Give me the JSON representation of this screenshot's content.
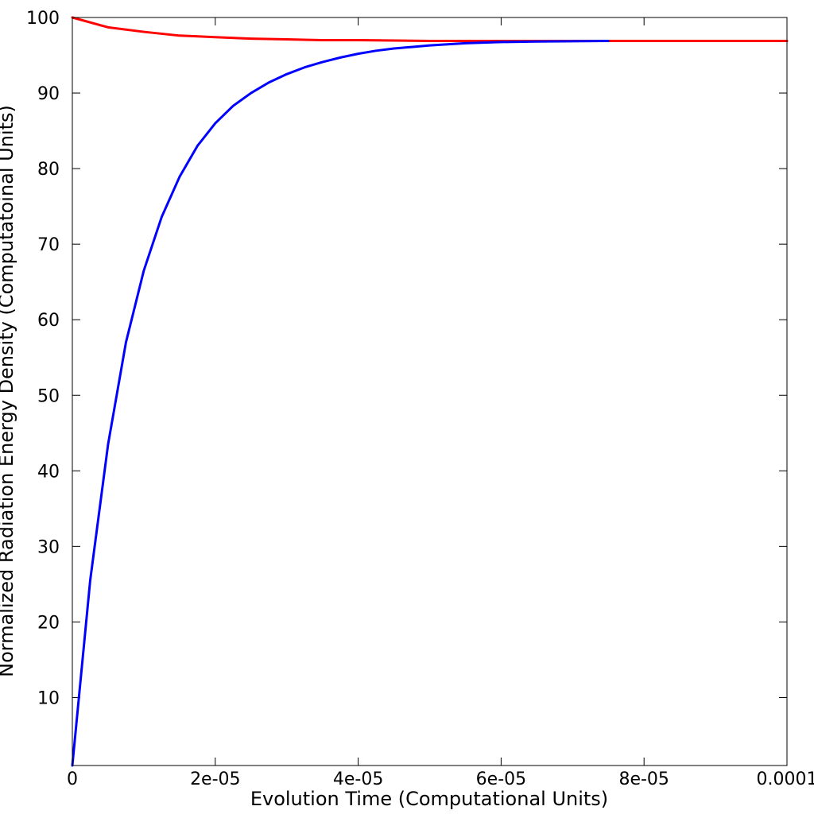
{
  "chart_data": {
    "type": "line",
    "title": "",
    "xlabel": "Evolution Time (Computational Units)",
    "ylabel": "Normalized Radiation Energy Density (Computatoinal Units)",
    "xlim": [
      0,
      0.0001
    ],
    "ylim": [
      1,
      100
    ],
    "x_ticks": [
      {
        "value": 0,
        "label": "0"
      },
      {
        "value": 2e-05,
        "label": "2e-05"
      },
      {
        "value": 4e-05,
        "label": "4e-05"
      },
      {
        "value": 6e-05,
        "label": "6e-05"
      },
      {
        "value": 8e-05,
        "label": "8e-05"
      },
      {
        "value": 0.0001,
        "label": "0.0001"
      }
    ],
    "y_ticks": [
      {
        "value": 10,
        "label": "10"
      },
      {
        "value": 20,
        "label": "20"
      },
      {
        "value": 30,
        "label": "30"
      },
      {
        "value": 40,
        "label": "40"
      },
      {
        "value": 50,
        "label": "50"
      },
      {
        "value": 60,
        "label": "60"
      },
      {
        "value": 70,
        "label": "70"
      },
      {
        "value": 80,
        "label": "80"
      },
      {
        "value": 90,
        "label": "90"
      },
      {
        "value": 100,
        "label": "100"
      }
    ],
    "grid": false,
    "legend": "none",
    "series": [
      {
        "color": "#ff0000",
        "x": [
          0,
          5e-06,
          1e-05,
          1.5e-05,
          2e-05,
          2.5e-05,
          3e-05,
          3.5e-05,
          4e-05,
          5e-05,
          6e-05,
          7e-05,
          8e-05,
          9e-05,
          0.0001
        ],
        "y": [
          100,
          98.7,
          98.1,
          97.6,
          97.4,
          97.2,
          97.1,
          97.0,
          97.0,
          96.9,
          96.9,
          96.9,
          96.9,
          96.9,
          96.9
        ]
      },
      {
        "color": "#0000ff",
        "x": [
          0,
          2.5e-06,
          5e-06,
          7.5e-06,
          1e-05,
          1.25e-05,
          1.5e-05,
          1.75e-05,
          2e-05,
          2.25e-05,
          2.5e-05,
          2.75e-05,
          3e-05,
          3.25e-05,
          3.5e-05,
          3.75e-05,
          4e-05,
          4.25e-05,
          4.5e-05,
          4.75e-05,
          5e-05,
          5.5e-05,
          6e-05,
          6.5e-05,
          7e-05,
          7.5e-05
        ],
        "y": [
          1,
          25.5,
          43.5,
          57.0,
          66.5,
          73.6,
          78.9,
          83.0,
          86.0,
          88.3,
          90.0,
          91.4,
          92.5,
          93.4,
          94.1,
          94.7,
          95.2,
          95.6,
          95.9,
          96.1,
          96.3,
          96.6,
          96.75,
          96.82,
          96.86,
          96.9
        ]
      }
    ]
  }
}
